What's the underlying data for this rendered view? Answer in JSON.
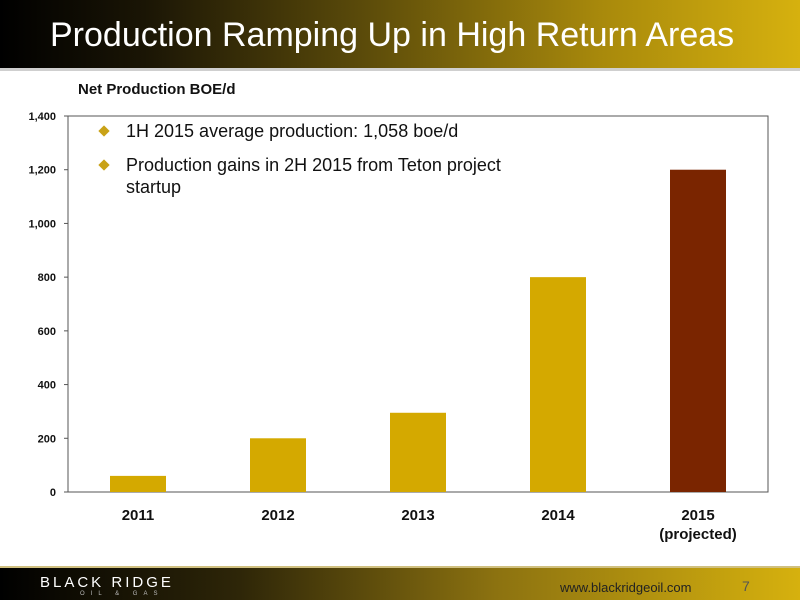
{
  "slide": {
    "title": "Production Ramping Up in High Return Areas",
    "page_number": "7",
    "url": "www.blackridgeoil.com",
    "logo_text": "BLACK RIDGE",
    "logo_subtext": "OIL & GAS"
  },
  "bullets": [
    "1H 2015 average production: 1,058 boe/d",
    "Production gains in 2H 2015 from Teton project startup"
  ],
  "chart_data": {
    "type": "bar",
    "title": "Net Production BOE/d",
    "categories": [
      "2011",
      "2012",
      "2013",
      "2014",
      "2015\n(projected)"
    ],
    "values": [
      60,
      200,
      295,
      800,
      1200
    ],
    "ylim": [
      0,
      1400
    ],
    "yticks": [
      0,
      200,
      400,
      600,
      800,
      1000,
      1200,
      1400
    ],
    "ytick_labels": [
      "0",
      "200",
      "400",
      "600",
      "800",
      "1,000",
      "1,200",
      "1,400"
    ],
    "bar_colors": [
      "#d4a900",
      "#d4a900",
      "#d4a900",
      "#d4a900",
      "#7a2500"
    ],
    "grid": false,
    "legend": "none"
  }
}
